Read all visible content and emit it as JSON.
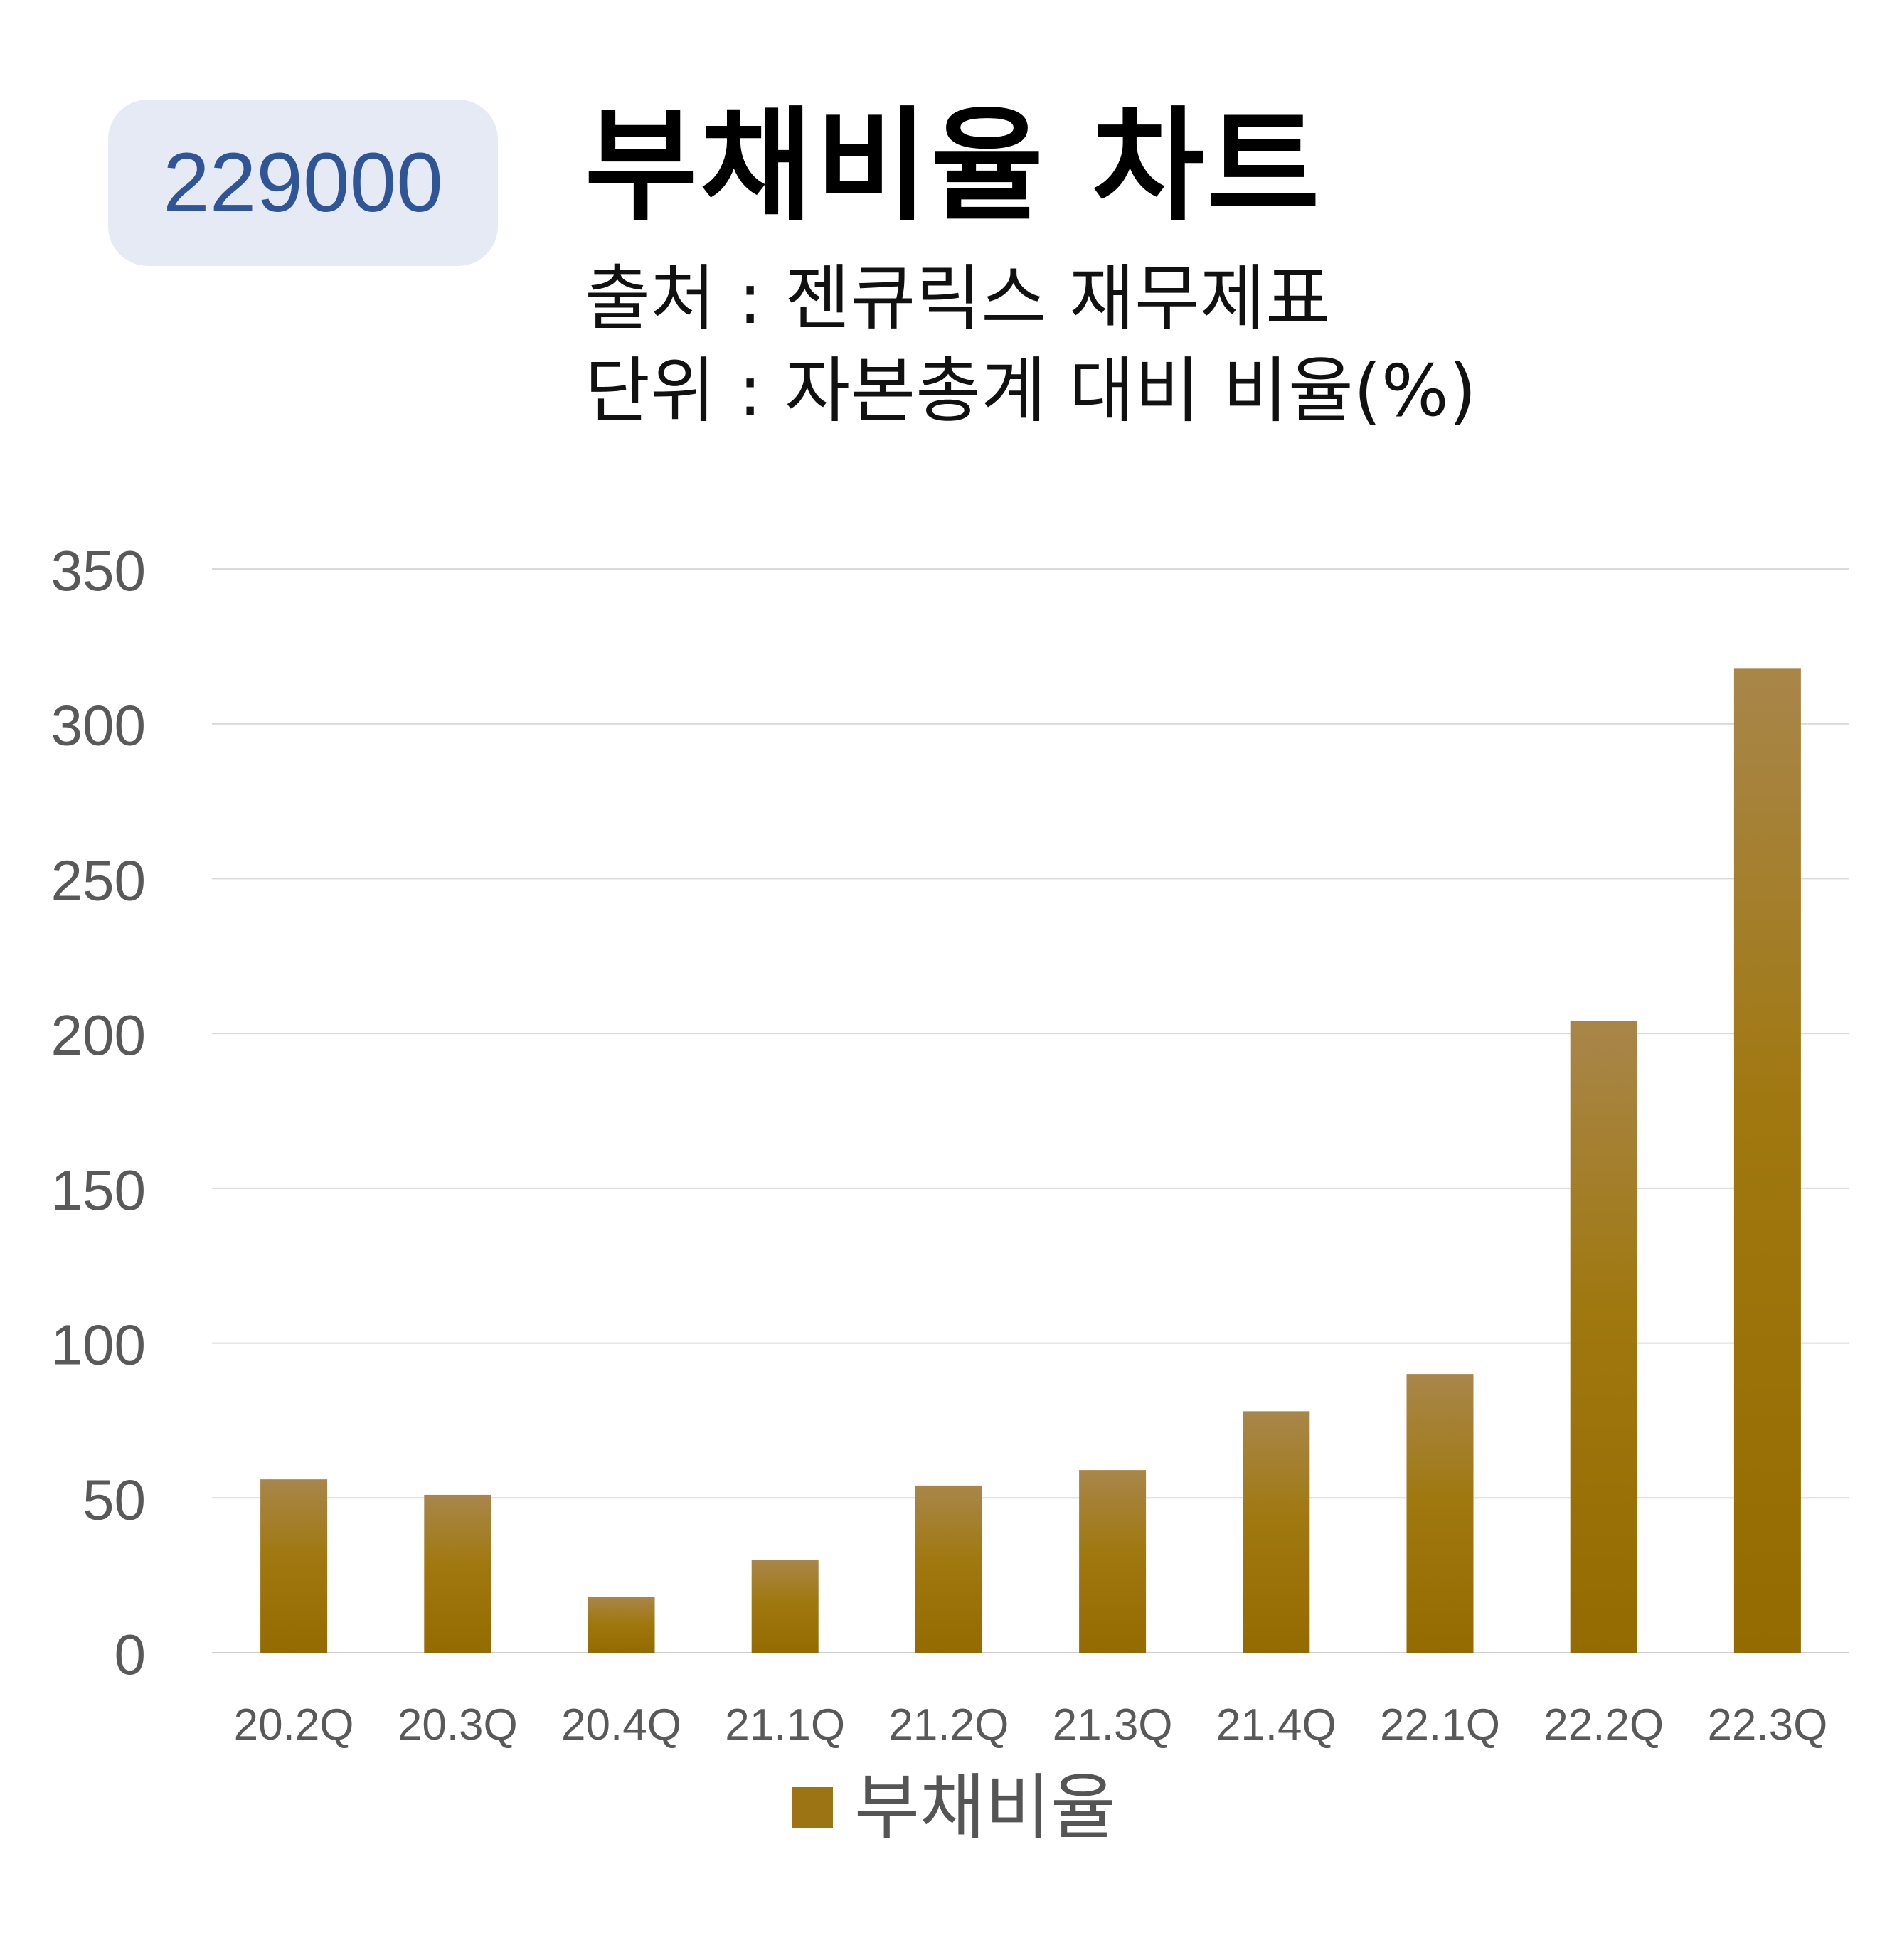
{
  "header": {
    "code": "229000",
    "title": "부채비율 차트",
    "source": "출처 : 젠큐릭스 재무제표",
    "unit": "단위 : 자본총계 대비 비율(%)"
  },
  "colors": {
    "bar_top": "#a8864a",
    "bar_bottom": "#946b00",
    "gridline": "#d9d9d9",
    "tick_text": "#595959",
    "badge_bg": "#e5eaf5",
    "badge_text": "#2f5597"
  },
  "chart_data": {
    "type": "bar",
    "categories": [
      "20.2Q",
      "20.3Q",
      "20.4Q",
      "21.1Q",
      "21.2Q",
      "21.3Q",
      "21.4Q",
      "22.1Q",
      "22.2Q",
      "22.3Q"
    ],
    "series": [
      {
        "name": "부채비율",
        "values": [
          56,
          51,
          18,
          30,
          54,
          59,
          78,
          90,
          204,
          318
        ]
      }
    ],
    "ylim": [
      0,
      350
    ],
    "yticks": [
      0,
      50,
      100,
      150,
      200,
      250,
      300,
      350
    ],
    "grid": true,
    "legend_position": "bottom-center"
  }
}
